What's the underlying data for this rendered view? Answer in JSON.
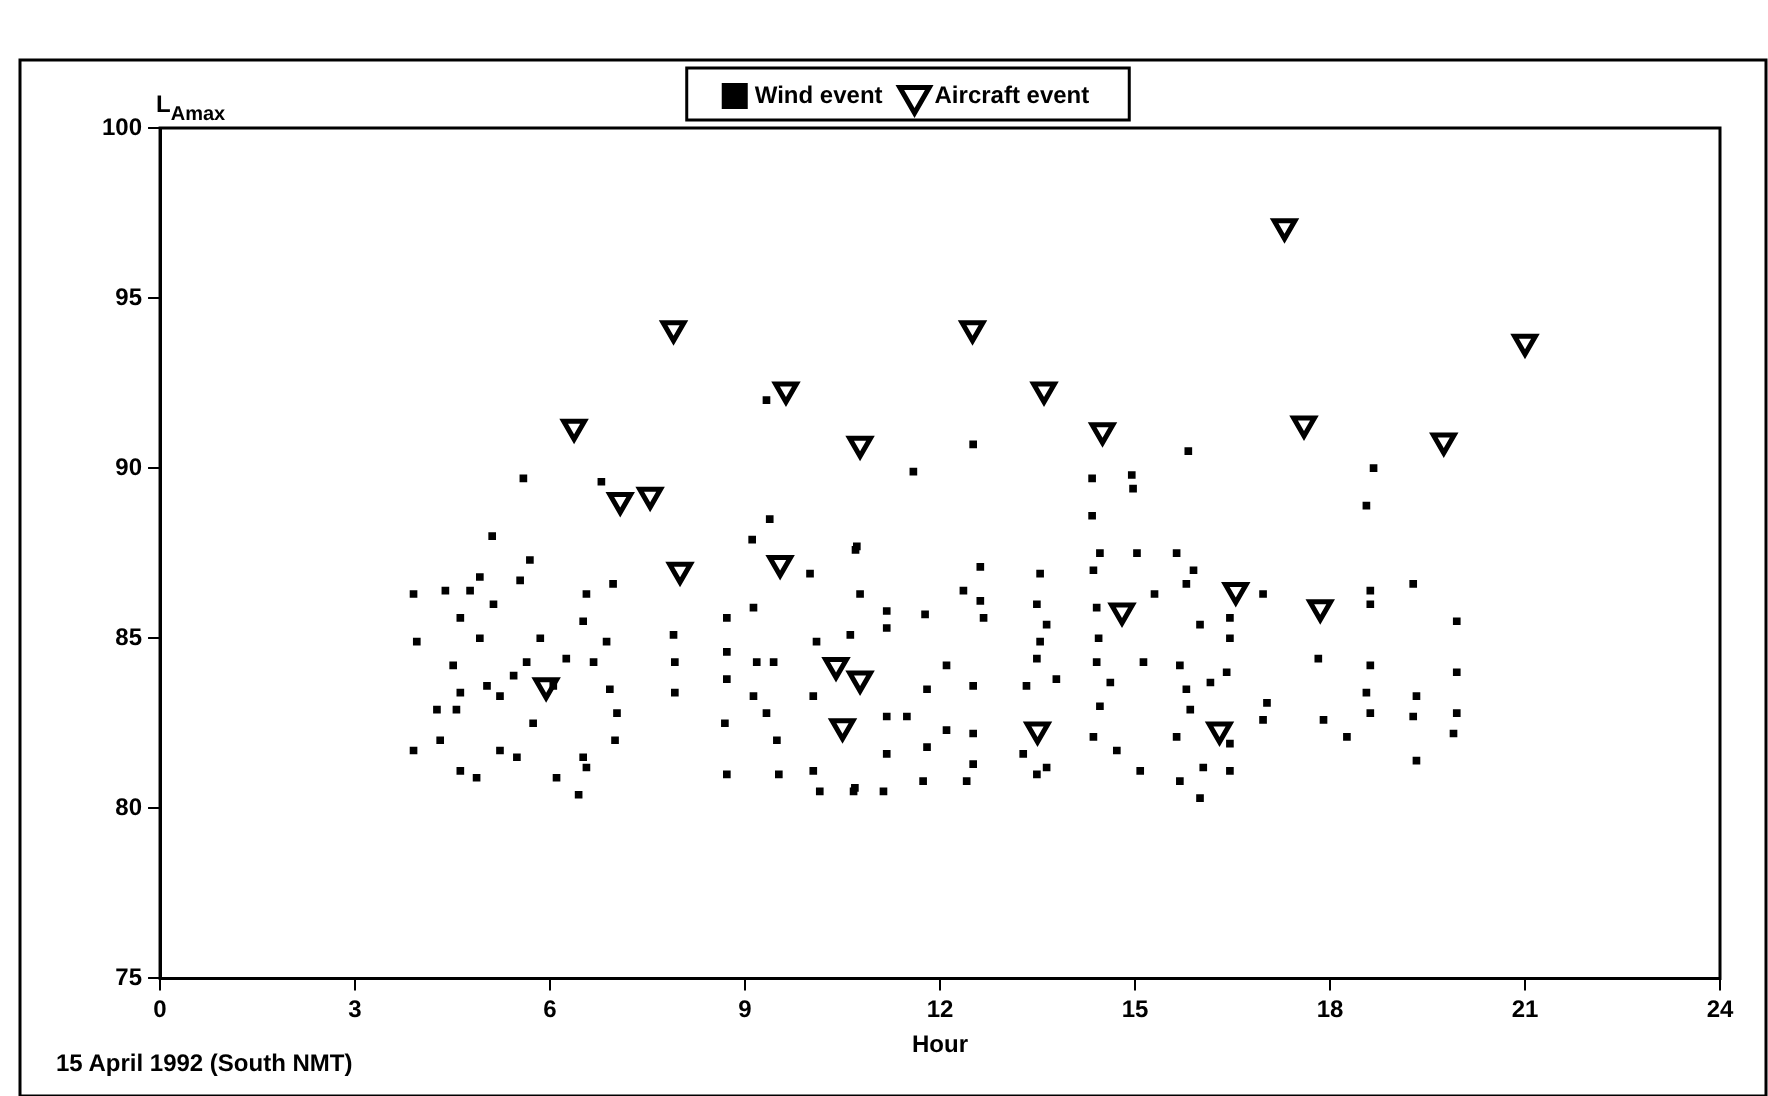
{
  "chart_data": {
    "type": "scatter",
    "ylabel": "L$_{Amax}$",
    "xlabel": "Hour",
    "annotations": [
      "15 April 1992 (South NMT)"
    ],
    "xlim": [
      0,
      24
    ],
    "xticks": [
      0,
      3,
      6,
      9,
      12,
      15,
      18,
      21,
      24
    ],
    "ylim": [
      75,
      100
    ],
    "yticks": [
      75,
      80,
      85,
      90,
      95,
      100
    ],
    "grid": false,
    "legend": "top",
    "series": [
      {
        "name": "Wind event",
        "color": "#000000",
        "marker": "square",
        "x": [
          3.9,
          4.39,
          3.95,
          3.9,
          4.62,
          4.87,
          4.31,
          4.26,
          4.56,
          4.51,
          4.62,
          4.77,
          4.92,
          5.11,
          5.59,
          5.69,
          5.54,
          5.13,
          4.92,
          5.03,
          5.23,
          5.23,
          5.49,
          5.74,
          5.85,
          6.05,
          6.25,
          6.56,
          6.97,
          6.51,
          6.67,
          6.87,
          6.92,
          7.03,
          7.0,
          6.51,
          6.1,
          6.44,
          6.56,
          5.64,
          5.44,
          4.62,
          6.79,
          7.9,
          7.92,
          7.92,
          8.72,
          8.72,
          8.72,
          8.69,
          8.72,
          9.13,
          9.38,
          9.11,
          9.18,
          9.44,
          9.13,
          9.33,
          9.49,
          9.52,
          10.0,
          10.1,
          10.05,
          10.05,
          10.15,
          10.67,
          10.7,
          9.33,
          12.51,
          11.59,
          10.72,
          10.77,
          11.18,
          11.18,
          11.77,
          10.62,
          12.1,
          11.8,
          12.51,
          12.62,
          12.36,
          12.62,
          12.67,
          11.18,
          11.49,
          12.1,
          12.51,
          11.18,
          11.8,
          12.51,
          12.41,
          11.74,
          11.13,
          10.69,
          13.54,
          13.49,
          13.64,
          13.54,
          13.49,
          13.33,
          13.79,
          13.28,
          13.64,
          13.49,
          14.34,
          14.34,
          14.95,
          14.97,
          15.82,
          14.46,
          15.03,
          15.64,
          15.9,
          15.79,
          15.3,
          14.36,
          14.41,
          14.44,
          14.41,
          15.13,
          14.62,
          14.46,
          14.36,
          14.72,
          15.08,
          15.69,
          15.79,
          15.85,
          15.64,
          16.05,
          15.69,
          16.0,
          16.41,
          16.16,
          16.46,
          16.46,
          16.0,
          16.46,
          16.46,
          16.97,
          17.03,
          16.97,
          17.82,
          17.9,
          18.26,
          18.67,
          18.56,
          18.62,
          18.62,
          18.62,
          18.56,
          18.62,
          19.28,
          19.33,
          19.28,
          19.33,
          19.95,
          19.95,
          19.95,
          19.9
        ],
        "values": [
          86.3,
          86.4,
          84.9,
          81.7,
          81.1,
          80.9,
          82.0,
          82.9,
          82.9,
          84.2,
          85.6,
          86.4,
          86.8,
          88.0,
          89.7,
          87.3,
          86.7,
          86.0,
          85.0,
          83.6,
          83.3,
          81.7,
          81.5,
          82.5,
          85.0,
          83.6,
          84.4,
          86.3,
          86.6,
          85.5,
          84.3,
          84.9,
          83.5,
          82.8,
          82.0,
          81.5,
          80.9,
          80.4,
          81.2,
          84.3,
          83.9,
          83.4,
          89.6,
          85.1,
          84.3,
          83.4,
          85.6,
          84.6,
          83.8,
          82.5,
          81.0,
          85.9,
          88.5,
          87.9,
          84.3,
          84.3,
          83.3,
          82.8,
          82.0,
          81.0,
          86.9,
          84.9,
          83.3,
          81.1,
          80.5,
          80.5,
          87.6,
          92.0,
          90.7,
          89.9,
          87.7,
          86.3,
          85.8,
          85.3,
          85.7,
          85.1,
          84.2,
          83.5,
          83.6,
          87.1,
          86.4,
          86.1,
          85.6,
          82.7,
          82.7,
          82.3,
          82.2,
          81.6,
          81.8,
          81.3,
          80.8,
          80.8,
          80.5,
          80.6,
          86.9,
          86.0,
          85.4,
          84.9,
          84.4,
          83.6,
          83.8,
          81.6,
          81.2,
          81.0,
          89.7,
          88.6,
          89.8,
          89.4,
          90.5,
          87.5,
          87.5,
          87.5,
          87.0,
          86.6,
          86.3,
          87.0,
          85.9,
          85.0,
          84.3,
          84.3,
          83.7,
          83.0,
          82.1,
          81.7,
          81.1,
          84.2,
          83.5,
          82.9,
          82.1,
          81.2,
          80.8,
          80.3,
          84.0,
          83.7,
          81.9,
          81.1,
          85.4,
          85.6,
          85.0,
          86.3,
          83.1,
          82.6,
          84.4,
          82.6,
          82.1,
          90.0,
          88.9,
          86.4,
          86.0,
          84.2,
          83.4,
          82.8,
          86.6,
          83.3,
          82.7,
          81.4,
          85.5,
          84.0,
          82.8,
          82.2
        ]
      },
      {
        "name": "Aircraft event",
        "color": "#000000",
        "marker": "triangle",
        "x": [
          6.37,
          7.08,
          7.54,
          8.0,
          7.9,
          9.54,
          9.63,
          5.94,
          10.4,
          10.5,
          10.77,
          10.77,
          12.5,
          13.6,
          14.5,
          17.3,
          17.6,
          19.75,
          21.0,
          14.8,
          16.55,
          17.85,
          13.5,
          16.3
        ],
        "values": [
          91.2,
          89.05,
          89.2,
          87.0,
          94.1,
          87.2,
          92.3,
          83.6,
          84.2,
          82.4,
          90.7,
          83.8,
          94.1,
          92.3,
          91.1,
          97.1,
          91.3,
          90.8,
          93.7,
          85.8,
          86.4,
          85.9,
          82.3,
          82.3
        ]
      }
    ]
  }
}
